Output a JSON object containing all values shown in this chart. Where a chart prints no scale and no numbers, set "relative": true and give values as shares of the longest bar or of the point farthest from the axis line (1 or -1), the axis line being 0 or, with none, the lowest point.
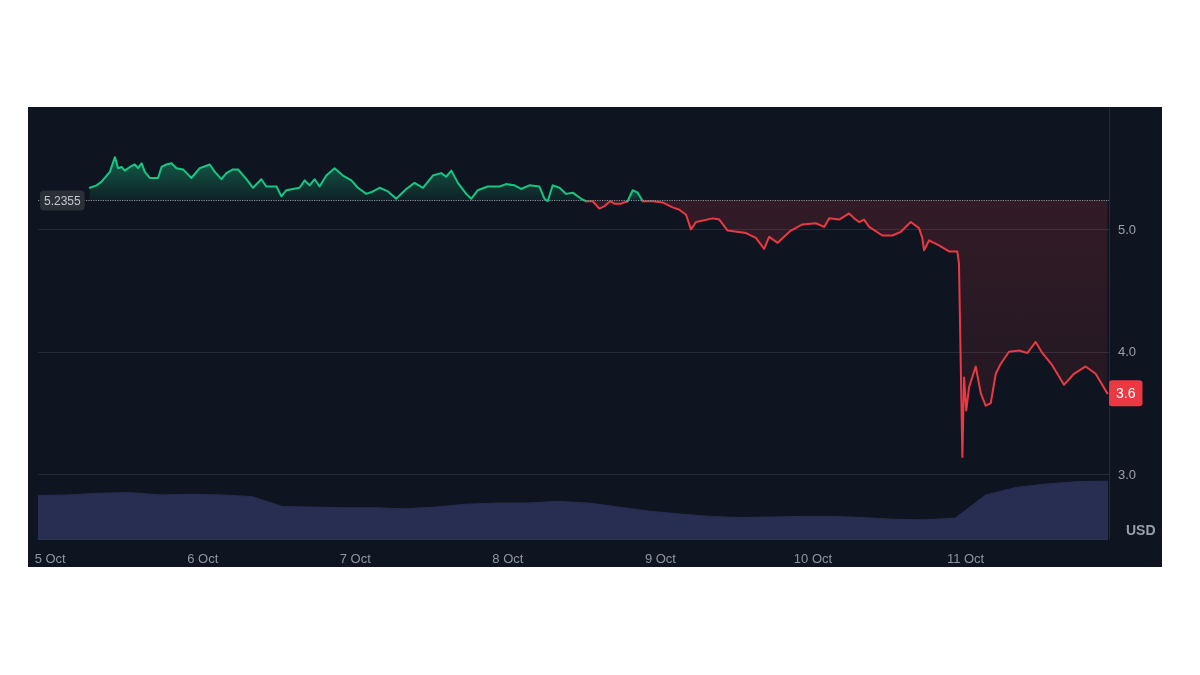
{
  "chart_data": [
    {
      "type": "area",
      "ylabel": "USD",
      "xlim": [
        "--10-04T22:05",
        "--10-11T22:34"
      ],
      "xticks": [
        {
          "value": "--10-05",
          "label": "5 Oct"
        },
        {
          "value": "--10-06",
          "label": "6 Oct"
        },
        {
          "value": "--10-07",
          "label": "7 Oct"
        },
        {
          "value": "--10-08",
          "label": "8 Oct"
        },
        {
          "value": "--10-09",
          "label": "9 Oct"
        },
        {
          "value": "--10-10",
          "label": "10 Oct"
        },
        {
          "value": "--10-11",
          "label": "11 Oct"
        }
      ],
      "ylim": [
        2.47,
        6.0
      ],
      "yticks": [
        {
          "value": 3,
          "label": "3.0"
        },
        {
          "value": 4,
          "label": "4.0"
        },
        {
          "value": 5,
          "label": "5.0"
        }
      ],
      "grid": "y",
      "ref_lines": [
        {
          "axis": "y",
          "value": 5.2355,
          "label": "5.2355",
          "line_style": "dotted",
          "color": "#8b909a"
        }
      ],
      "annotations": [
        "3.6"
      ],
      "series": [
        {
          "color": "#16c784",
          "x": [
            "--10-05T06:14",
            "--10-05T07:18",
            "--10-05T08:05",
            "--10-05T09:23",
            "--10-05T10:11",
            "--10-05T10:41",
            "--10-05T11:14",
            "--10-05T11:44",
            "--10-05T12:32",
            "--10-05T13:19",
            "--10-05T13:49",
            "--10-05T14:23",
            "--10-05T14:53",
            "--10-05T15:40",
            "--10-05T16:58",
            "--10-05T17:31",
            "--10-05T18:17",
            "--10-05T19:05",
            "--10-05T19:52",
            "--10-05T20:54",
            "--10-05T22:13",
            "--10-05T23:31",
            "--10-06T01:06",
            "--10-06T01:54",
            "--10-06T02:56",
            "--10-06T03:43",
            "--10-06T04:45",
            "--10-06T05:33",
            "--10-06T06:52",
            "--10-06T07:54",
            "--10-06T09:13",
            "--10-06T10:00",
            "--10-06T11:36",
            "--10-06T12:22",
            "--10-06T13:09",
            "--10-06T15:14",
            "--10-06T16:02",
            "--10-06T16:49",
            "--10-06T17:36",
            "--10-06T18:23",
            "--10-06T19:26",
            "--10-06T20:44",
            "--10-06T22:03",
            "--10-06T23:23",
            "--10-07T00:24",
            "--10-07T01:44",
            "--10-07T02:46",
            "--10-07T03:49",
            "--10-07T05:08",
            "--10-07T06:26",
            "--10-07T08:01",
            "--10-07T09:19",
            "--10-07T10:38",
            "--10-07T12:12",
            "--10-07T13:31",
            "--10-07T14:18",
            "--10-07T15:06",
            "--10-07T16:08",
            "--10-07T17:27",
            "--10-07T18:14",
            "--10-07T19:16",
            "--10-07T20:50",
            "--10-07T22:41",
            "--10-07T23:44",
            "--10-08T01:02",
            "--10-08T02:05",
            "--10-08T03:23",
            "--10-08T04:58",
            "--10-08T05:46",
            "--10-08T06:16",
            "--10-08T07:03",
            "--10-08T08:07",
            "--10-08T09:10",
            "--10-08T10:12",
            "--10-08T11:31",
            "--10-08T12:19"
          ],
          "values": [
            5.34,
            5.36,
            5.39,
            5.47,
            5.59,
            5.5,
            5.51,
            5.48,
            5.51,
            5.53,
            5.5,
            5.54,
            5.47,
            5.42,
            5.42,
            5.51,
            5.53,
            5.54,
            5.5,
            5.49,
            5.42,
            5.5,
            5.53,
            5.47,
            5.41,
            5.46,
            5.49,
            5.49,
            5.41,
            5.34,
            5.41,
            5.35,
            5.35,
            5.27,
            5.32,
            5.34,
            5.4,
            5.36,
            5.41,
            5.35,
            5.44,
            5.5,
            5.44,
            5.4,
            5.34,
            5.29,
            5.31,
            5.34,
            5.31,
            5.25,
            5.33,
            5.38,
            5.34,
            5.44,
            5.46,
            5.43,
            5.48,
            5.38,
            5.29,
            5.25,
            5.32,
            5.35,
            5.35,
            5.37,
            5.36,
            5.33,
            5.36,
            5.35,
            5.25,
            5.23,
            5.36,
            5.34,
            5.29,
            5.3,
            5.25,
            5.23
          ]
        },
        {
          "type": "line",
          "color": "#ea3943",
          "x": [
            "--10-08T12:19",
            "--10-08T13:21",
            "--10-08T14:24",
            "--10-08T15:12",
            "--10-08T16:05",
            "--10-08T16:45",
            "--10-08T17:48",
            "--10-08T18:50"
          ],
          "values": [
            5.23,
            5.23,
            5.17,
            5.19,
            5.23,
            5.21,
            5.21,
            5.23
          ],
          "lower": [
            5.23,
            5.23,
            5.17,
            5.19,
            5.23,
            5.21,
            5.21,
            5.23
          ],
          "upper": [
            5.2355,
            5.2355,
            5.2355,
            5.2355,
            5.2355,
            5.2355,
            5.2355,
            5.2355
          ]
        },
        {
          "color": "#16c784",
          "x": [
            "--10-08T18:50",
            "--10-08T19:38",
            "--10-08T20:25",
            "--10-08T21:13"
          ],
          "values": [
            5.23,
            5.32,
            5.3,
            5.23
          ]
        },
        {
          "type": "line",
          "color": "#ea3943",
          "x": [
            "--10-08T21:13",
            "--10-08T22:47",
            "--10-09T00:20",
            "--10-09T01:55",
            "--10-09T02:59",
            "--10-09T04:02",
            "--10-09T04:48",
            "--10-09T05:36",
            "--10-09T08:12",
            "--10-09T09:16",
            "--10-09T10:34",
            "--10-09T13:28",
            "--10-09T15:01",
            "--10-09T16:19",
            "--10-09T17:07",
            "--10-09T18:26",
            "--10-09T20:31",
            "--10-09T22:21",
            "--10-10T00:27",
            "--10-10T01:45",
            "--10-10T02:33",
            "--10-10T04:08",
            "--10-10T05:41",
            "--10-10T06:29",
            "--10-10T07:16",
            "--10-10T08:02",
            "--10-10T08:50",
            "--10-10T10:55",
            "--10-10T12:30",
            "--10-10T13:49",
            "--10-10T15:23",
            "--10-10T16:41",
            "--10-10T17:12",
            "--10-10T17:28",
            "--10-10T18:16",
            "--10-10T19:49",
            "--10-10T21:24",
            "--10-10T22:42",
            "--10-10T22:58",
            "--10-10T23:30",
            "--10-10T23:46",
            "--10-11T00:07",
            "--10-11T00:33",
            "--10-11T01:36",
            "--10-11T02:24",
            "--10-11T03:10",
            "--10-11T03:58",
            "--10-11T04:45",
            "--10-11T05:31",
            "--10-11T06:50",
            "--10-11T08:24",
            "--10-11T09:43",
            "--10-11T11:02",
            "--10-11T12:04",
            "--10-11T13:38",
            "--10-11T15:29",
            "--10-11T17:04",
            "--10-11T18:53",
            "--10-11T20:28",
            "--10-11T22:18"
          ],
          "values": [
            5.23,
            5.23,
            5.22,
            5.18,
            5.16,
            5.12,
            5.0,
            5.06,
            5.09,
            5.08,
            4.99,
            4.97,
            4.93,
            4.84,
            4.94,
            4.89,
            4.99,
            5.04,
            5.05,
            5.02,
            5.09,
            5.08,
            5.13,
            5.09,
            5.06,
            5.08,
            5.02,
            4.95,
            4.95,
            4.98,
            5.06,
            5.01,
            4.93,
            4.83,
            4.91,
            4.87,
            4.82,
            4.82,
            4.72,
            3.14,
            3.79,
            3.52,
            3.71,
            3.88,
            3.66,
            3.56,
            3.58,
            3.82,
            3.9,
            4.0,
            4.01,
            3.99,
            4.08,
            3.99,
            3.89,
            3.73,
            3.82,
            3.88,
            3.82,
            3.66
          ],
          "lower": [
            5.23,
            5.23,
            5.22,
            5.18,
            5.16,
            5.12,
            5.0,
            5.06,
            5.09,
            5.08,
            4.99,
            4.97,
            4.93,
            4.84,
            4.94,
            4.89,
            4.99,
            5.04,
            5.05,
            5.02,
            5.09,
            5.08,
            5.13,
            5.09,
            5.06,
            5.08,
            5.02,
            4.95,
            4.95,
            4.98,
            5.06,
            5.01,
            4.93,
            4.83,
            4.91,
            4.87,
            4.82,
            4.82,
            4.72,
            3.14,
            3.79,
            3.52,
            3.71,
            3.88,
            3.66,
            3.56,
            3.58,
            3.82,
            3.9,
            4.0,
            4.01,
            3.99,
            4.08,
            3.99,
            3.89,
            3.73,
            3.82,
            3.88,
            3.82,
            3.66
          ],
          "upper": [
            5.2355,
            5.2355,
            5.2355,
            5.2355,
            5.2355,
            5.2355,
            5.2355,
            5.2355,
            5.2355,
            5.2355,
            5.2355,
            5.2355,
            5.2355,
            5.2355,
            5.2355,
            5.2355,
            5.2355,
            5.2355,
            5.2355,
            5.2355,
            5.2355,
            5.2355,
            5.2355,
            5.2355,
            5.2355,
            5.2355,
            5.2355,
            5.2355,
            5.2355,
            5.2355,
            5.2355,
            5.2355,
            5.2355,
            5.2355,
            5.2355,
            5.2355,
            5.2355,
            5.2355,
            5.2355,
            5.2355,
            5.2355,
            5.2355,
            5.2355,
            5.2355,
            5.2355,
            5.2355,
            5.2355,
            5.2355,
            5.2355,
            5.2355,
            5.2355,
            5.2355,
            5.2355,
            5.2355,
            5.2355,
            5.2355,
            5.2355,
            5.2355,
            5.2355,
            5.2355
          ]
        }
      ]
    },
    {
      "type": "area",
      "relative": true,
      "tick_labels": false,
      "color": "#282d52",
      "categories": [
        null,
        null,
        null,
        null,
        null,
        null,
        null,
        null,
        null,
        null,
        null,
        null,
        null,
        null,
        null,
        null,
        null,
        null,
        null,
        null,
        null,
        null,
        null,
        null,
        null,
        null,
        null,
        null,
        null,
        null,
        null,
        null,
        null,
        null,
        null,
        null
      ],
      "values": [
        0.75,
        0.76,
        0.79,
        0.8,
        0.76,
        0.77,
        0.76,
        0.73,
        0.56,
        0.55,
        0.54,
        0.54,
        0.52,
        0.55,
        0.6,
        0.62,
        0.62,
        0.65,
        0.62,
        0.55,
        0.48,
        0.43,
        0.39,
        0.37,
        0.38,
        0.39,
        0.39,
        0.37,
        0.34,
        0.33,
        0.36,
        0.76,
        0.89,
        0.95,
        0.99,
        1.0
      ]
    }
  ]
}
